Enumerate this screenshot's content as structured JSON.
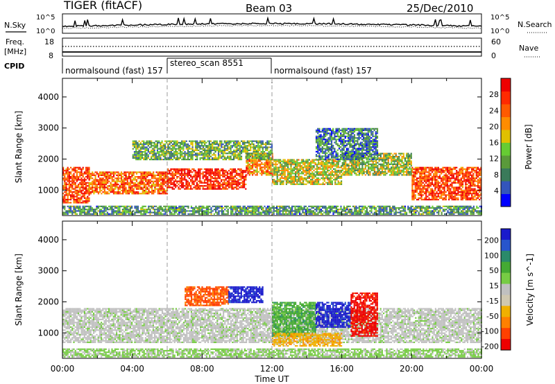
{
  "header": {
    "radar": "TIGER (fitACF)",
    "beam": "Beam 03",
    "date": "25/Dec/2010"
  },
  "status_panels": {
    "nsky_label": "N.Sky",
    "nsky_ticks": [
      "10^5",
      "10^0"
    ],
    "nsearch_label": "N.Search",
    "nsearch_ticks": [
      "10^5",
      "10^0"
    ],
    "freq_label": "Freq.",
    "freq_unit": "[MHz]",
    "freq_ticks": [
      18,
      8
    ],
    "nave_label": "Nave",
    "nave_ticks": [
      60,
      0
    ],
    "cpid_label": "CPID",
    "cpid_segments": [
      {
        "start": 0,
        "end": 6,
        "label": "normalsound (fast) 157"
      },
      {
        "start": 6,
        "end": 12,
        "label": "stereo_scan 8551"
      },
      {
        "start": 12,
        "end": 24,
        "label": "normalsound (fast) 157"
      }
    ]
  },
  "colors": {
    "power_scale": [
      "#0000ff",
      "#3355bb",
      "#3a7a5a",
      "#5a9a3a",
      "#66cc33",
      "#e0c000",
      "#ff8c00",
      "#ff5a00",
      "#ff2a00",
      "#ee0000"
    ],
    "velocity_scale": [
      "#1a1acc",
      "#2855cc",
      "#2a8a6a",
      "#44aa33",
      "#77cc44",
      "#c0c0c0",
      "#d0c8b0",
      "#f0b000",
      "#ff8000",
      "#ff4000",
      "#ee0000"
    ]
  },
  "chart_data": [
    {
      "type": "heatmap",
      "panel": "power",
      "ylabel": "Slant Range [km]",
      "xlabel": "",
      "xlim": [
        0,
        24
      ],
      "ylim": [
        180,
        4600
      ],
      "yticks": [
        1000,
        2000,
        3000,
        4000
      ],
      "colorbar_label": "Power [dB]",
      "colorbar_range": [
        0,
        32
      ],
      "colorbar_ticks": [
        4,
        8,
        12,
        16,
        20,
        24,
        28
      ],
      "dividers_hours": [
        6,
        12
      ],
      "echo_bands": [
        {
          "t0": 0,
          "t1": 1.5,
          "r0": 600,
          "r1": 1750,
          "level": 26
        },
        {
          "t0": 1.5,
          "t1": 6,
          "r0": 900,
          "r1": 1600,
          "level": 24
        },
        {
          "t0": 6,
          "t1": 10.5,
          "r0": 1050,
          "r1": 1700,
          "level": 28
        },
        {
          "t0": 10.5,
          "t1": 12,
          "r0": 1500,
          "r1": 2200,
          "level": 22
        },
        {
          "t0": 12,
          "t1": 16,
          "r0": 1200,
          "r1": 2000,
          "level": 16
        },
        {
          "t0": 16,
          "t1": 20,
          "r0": 1500,
          "r1": 2200,
          "level": 14
        },
        {
          "t0": 20,
          "t1": 24,
          "r0": 700,
          "r1": 1750,
          "level": 26
        },
        {
          "t0": 0,
          "t1": 24,
          "r0": 250,
          "r1": 500,
          "level": 10
        },
        {
          "t0": 4,
          "t1": 12,
          "r0": 2000,
          "r1": 2600,
          "level": 12
        },
        {
          "t0": 14.5,
          "t1": 18,
          "r0": 2000,
          "r1": 3000,
          "level": 8
        }
      ]
    },
    {
      "type": "heatmap",
      "panel": "velocity",
      "ylabel": "Slant Range [km]",
      "xlabel": "Time UT",
      "xlim": [
        0,
        24
      ],
      "ylim": [
        180,
        4600
      ],
      "yticks": [
        1000,
        2000,
        3000,
        4000
      ],
      "xticks": [
        "00:00",
        "04:00",
        "08:00",
        "12:00",
        "16:00",
        "20:00",
        "00:00"
      ],
      "colorbar_label": "Velocity [m s^-1]",
      "colorbar_ticks": [
        200,
        100,
        50,
        15,
        -15,
        -50,
        -100,
        -200
      ],
      "dividers_hours": [
        6,
        12
      ],
      "echo_bands": [
        {
          "t0": 0,
          "t1": 24,
          "r0": 700,
          "r1": 1800,
          "value": 0
        },
        {
          "t0": 7,
          "t1": 9.5,
          "r0": 1900,
          "r1": 2500,
          "value": -150
        },
        {
          "t0": 9.5,
          "t1": 11.5,
          "r0": 2000,
          "r1": 2500,
          "value": 200
        },
        {
          "t0": 12,
          "t1": 14.5,
          "r0": 900,
          "r1": 2000,
          "value": 80
        },
        {
          "t0": 14.5,
          "t1": 16.5,
          "r0": 1200,
          "r1": 2000,
          "value": 200
        },
        {
          "t0": 16.5,
          "t1": 18,
          "r0": 900,
          "r1": 2300,
          "value": -200
        },
        {
          "t0": 12,
          "t1": 16,
          "r0": 600,
          "r1": 1000,
          "value": -80
        },
        {
          "t0": 0,
          "t1": 24,
          "r0": 250,
          "r1": 500,
          "value": 30
        }
      ]
    }
  ]
}
